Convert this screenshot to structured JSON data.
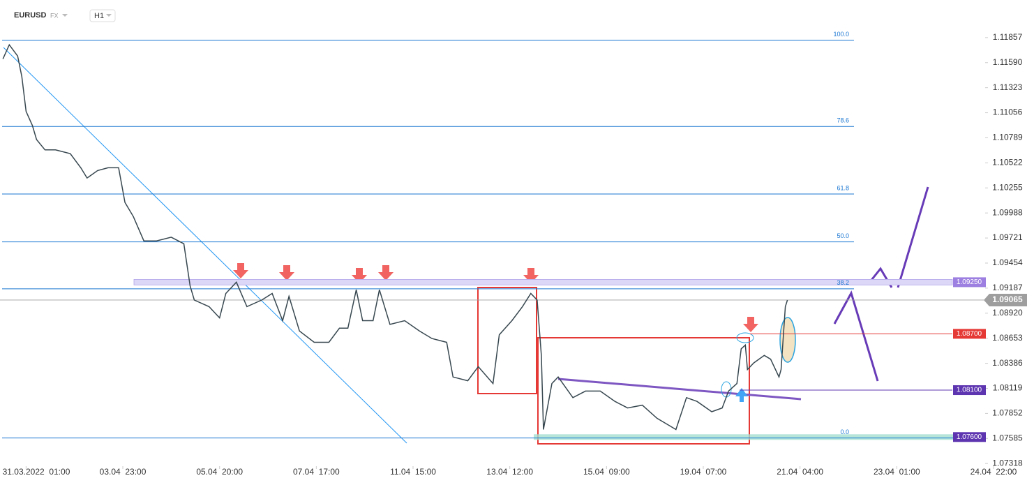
{
  "header": {
    "symbol": "EURUSD",
    "market": "FX",
    "interval": "H1"
  },
  "chart_data": {
    "type": "line",
    "x": [
      -11,
      -8,
      -4,
      -2,
      0,
      3,
      5,
      9,
      14,
      21,
      26,
      29,
      34,
      39,
      44,
      47,
      51,
      56,
      62,
      69,
      75,
      78,
      80,
      87,
      92,
      95,
      100,
      105,
      112,
      117,
      122,
      125,
      130,
      137,
      144,
      149,
      153,
      157,
      160,
      165,
      168,
      173,
      180,
      187,
      193,
      200,
      203,
      210,
      215,
      222,
      225,
      231,
      236,
      240,
      243,
      245,
      246,
      250,
      253,
      260,
      266,
      273,
      280,
      286,
      293,
      300,
      306,
      309,
      314,
      319,
      326,
      331,
      334,
      338,
      340,
      342,
      343,
      346,
      351,
      354,
      358,
      359,
      361,
      362
    ],
    "series": [
      {
        "name": "EURUSD",
        "color": "#37474f",
        "values": [
          1.1163,
          1.1178,
          1.1166,
          1.1144,
          1.1107,
          1.1092,
          1.1077,
          1.1066,
          1.1066,
          1.1062,
          1.1047,
          1.1036,
          1.1044,
          1.1047,
          1.1047,
          1.101,
          1.0995,
          1.0969,
          1.0969,
          1.0973,
          1.0966,
          1.0921,
          1.0906,
          1.0899,
          1.0887,
          1.0913,
          1.0925,
          1.0899,
          1.0906,
          1.0913,
          1.0884,
          1.091,
          1.0873,
          1.0861,
          1.0861,
          1.0876,
          1.0876,
          1.0917,
          1.0884,
          1.0884,
          1.0917,
          1.088,
          1.0884,
          1.0873,
          1.0865,
          1.0861,
          1.0824,
          1.082,
          1.0835,
          1.0817,
          1.0869,
          1.0884,
          1.0899,
          1.0913,
          1.0906,
          1.0847,
          1.0768,
          1.0817,
          1.0824,
          1.0802,
          1.0809,
          1.0809,
          1.0798,
          1.0791,
          1.0794,
          1.078,
          1.0772,
          1.0768,
          1.0802,
          1.0798,
          1.0787,
          1.0791,
          1.0809,
          1.0817,
          1.0854,
          1.0858,
          1.0832,
          1.0839,
          1.0847,
          1.0843,
          1.0824,
          1.0832,
          1.0899,
          1.0906
        ]
      }
    ],
    "xlim": [
      -12.4,
      462
    ],
    "xticks": [
      {
        "value": 0,
        "label": "31.03.2022  01:00"
      },
      {
        "value": 46,
        "label": "03.04  23:00"
      },
      {
        "value": 92,
        "label": "05.04  20:00"
      },
      {
        "value": 138,
        "label": "07.04  17:00"
      },
      {
        "value": 184,
        "label": "11.04  15:00"
      },
      {
        "value": 230,
        "label": "13.04  12:00"
      },
      {
        "value": 276,
        "label": "15.04  09:00"
      },
      {
        "value": 322,
        "label": "19.04  07:00"
      },
      {
        "value": 368,
        "label": "21.04  04:00"
      },
      {
        "value": 414,
        "label": "23.04  01:00"
      },
      {
        "value": 460,
        "label": "24.04  22:00"
      }
    ],
    "ylim": [
      1.0726,
      1.1196
    ],
    "yticks": [
      1.11857,
      {
        "value": 1.1159,
        "label": "1.11590"
      },
      1.11323,
      1.11056,
      1.10789,
      1.10522,
      1.10255,
      1.09988,
      1.09721,
      1.09454,
      1.09187,
      {
        "value": 1.0892,
        "label": "1.08920"
      },
      1.08653,
      1.08386,
      1.08119,
      1.07852,
      1.07585,
      1.07318
    ],
    "fibonacci": [
      {
        "ratio": "100.0",
        "price": 1.1183
      },
      {
        "ratio": "78.6",
        "price": 1.1091
      },
      {
        "ratio": "61.8",
        "price": 1.1019
      },
      {
        "ratio": "50.0",
        "price": 1.0968
      },
      {
        "ratio": "38.2",
        "price": 1.0918
      },
      {
        "ratio": "0.0",
        "price": 1.0759
      }
    ],
    "fib_color": "#1976d2",
    "levels": [
      {
        "value": 1.0925,
        "label": "1.09250",
        "color": "#9c7fe0"
      },
      {
        "value": 1.0906,
        "label": "1.09065",
        "color": "#9e9e9e"
      },
      {
        "value": 1.087,
        "label": "1.08700",
        "color": "#e53935"
      },
      {
        "value": 1.081,
        "label": "1.08100",
        "color": "#5e35b1"
      },
      {
        "value": 1.076,
        "label": "1.07600",
        "color": "#5e35b1"
      }
    ],
    "grid": false
  }
}
